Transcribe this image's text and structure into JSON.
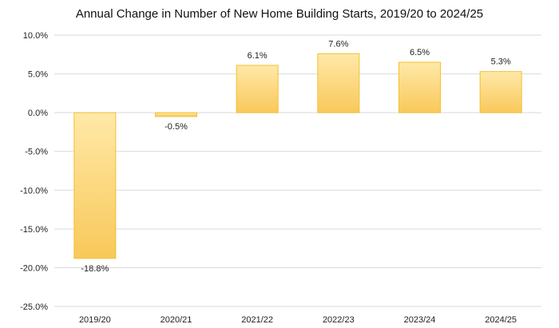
{
  "chart_data": {
    "type": "bar",
    "title": "Annual Change in Number of New Home Building Starts, 2019/20 to 2024/25",
    "categories": [
      "2019/20",
      "2020/21",
      "2021/22",
      "2022/23",
      "2023/24",
      "2024/25"
    ],
    "values": [
      -18.8,
      -0.5,
      6.1,
      7.6,
      6.5,
      5.3
    ],
    "data_labels": [
      "-18.8%",
      "-0.5%",
      "6.1%",
      "7.6%",
      "6.5%",
      "5.3%"
    ],
    "ylim": [
      -25,
      10
    ],
    "yticks": [
      10,
      5,
      0,
      -5,
      -10,
      -15,
      -20,
      -25
    ],
    "ytick_labels": [
      "10.0%",
      "5.0%",
      "0.0%",
      "-5.0%",
      "-10.0%",
      "-15.0%",
      "-20.0%",
      "-25.0%"
    ],
    "xlabel": "",
    "ylabel": "",
    "grid": true,
    "legend": "none",
    "colors": {
      "bar_top": "#FFE9A8",
      "bar_bottom": "#F9C85A",
      "bar_border": "#F2C12E",
      "grid": "#D9D9D9"
    }
  }
}
